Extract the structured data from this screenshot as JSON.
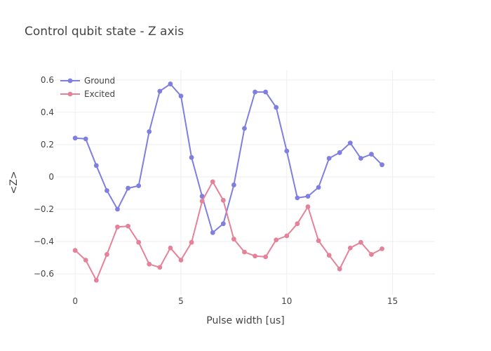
{
  "chart_data": {
    "type": "line",
    "title": "Control qubit state - Z axis",
    "xlabel": "Pulse width [us]",
    "ylabel": "<Z>",
    "xlim": [
      -0.9,
      17.0
    ],
    "ylim": [
      -0.73,
      0.66
    ],
    "xticks": [
      0,
      5,
      10,
      15
    ],
    "yticks": [
      -0.6,
      -0.4,
      -0.2,
      0,
      0.2,
      0.4,
      0.6
    ],
    "ytick_labels": [
      "−0.6",
      "−0.4",
      "−0.2",
      "0",
      "0.2",
      "0.4",
      "0.6"
    ],
    "legend_position": "top-left",
    "grid": true,
    "x": [
      0,
      0.5,
      1,
      1.5,
      2,
      2.5,
      3,
      3.5,
      4,
      4.5,
      5,
      5.5,
      6,
      6.5,
      7,
      7.5,
      8,
      8.5,
      9,
      9.5,
      10,
      10.5,
      11,
      11.5,
      12,
      12.5,
      13,
      13.5,
      14,
      14.5
    ],
    "series": [
      {
        "name": "Ground",
        "color": "#7f7fdf",
        "values": [
          0.24,
          0.235,
          0.07,
          -0.085,
          -0.2,
          -0.07,
          -0.055,
          0.28,
          0.53,
          0.575,
          0.5,
          0.12,
          -0.12,
          -0.345,
          -0.29,
          -0.05,
          0.3,
          0.525,
          0.525,
          0.43,
          0.16,
          -0.13,
          -0.12,
          -0.065,
          0.115,
          0.15,
          0.21,
          0.115,
          0.14,
          0.075
        ]
      },
      {
        "name": "Excited",
        "color": "#e5829a",
        "values": [
          -0.455,
          -0.515,
          -0.64,
          -0.48,
          -0.31,
          -0.305,
          -0.405,
          -0.54,
          -0.56,
          -0.44,
          -0.515,
          -0.405,
          -0.15,
          -0.03,
          -0.145,
          -0.385,
          -0.465,
          -0.49,
          -0.495,
          -0.39,
          -0.365,
          -0.29,
          -0.185,
          -0.395,
          -0.485,
          -0.57,
          -0.44,
          -0.405,
          -0.48,
          -0.445
        ]
      }
    ]
  }
}
